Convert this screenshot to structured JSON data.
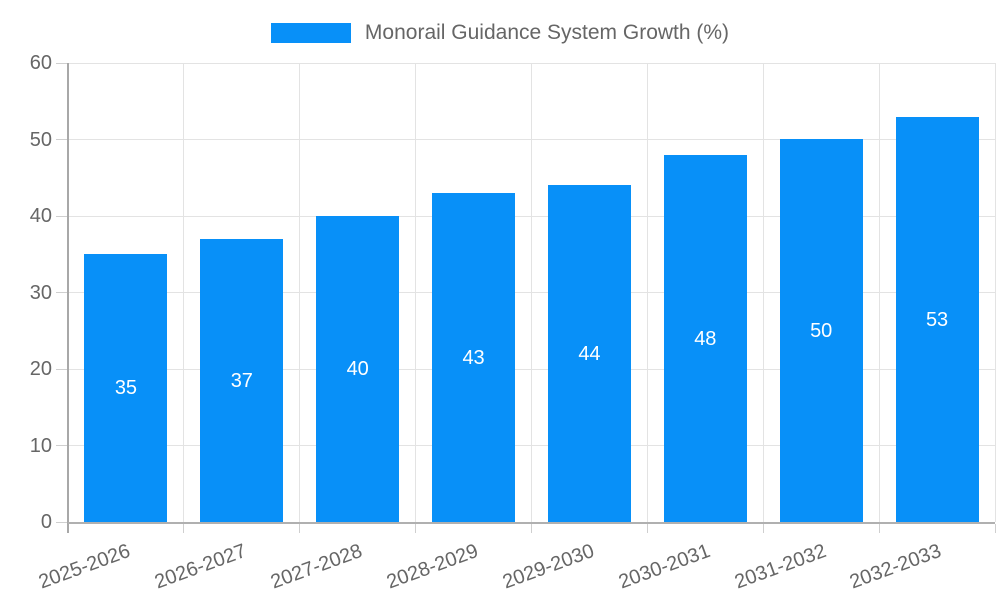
{
  "legend": {
    "label": "Monorail Guidance System Growth (%)"
  },
  "chart_data": {
    "type": "bar",
    "title": "Monorail Guidance System Growth (%)",
    "categories": [
      "2025-2026",
      "2026-2027",
      "2027-2028",
      "2028-2029",
      "2029-2030",
      "2030-2031",
      "2031-2032",
      "2032-2033"
    ],
    "values": [
      35,
      37,
      40,
      43,
      44,
      48,
      50,
      53
    ],
    "series_name": "Monorail Guidance System Growth (%)",
    "xlabel": "",
    "ylabel": "",
    "ylim": [
      0,
      60
    ],
    "yticks": [
      0,
      10,
      20,
      30,
      40,
      50,
      60
    ],
    "grid": true,
    "legend_position": "top",
    "bar_labels_inside": true,
    "x_label_rotation_deg": -20
  },
  "colors": {
    "bar": "#0890f8",
    "bar_label": "#ffffff",
    "grid": "#e3e3e3",
    "tick": "#cfcfcf",
    "axis": "#a8a8a8",
    "text": "#666666",
    "background": "#ffffff"
  }
}
